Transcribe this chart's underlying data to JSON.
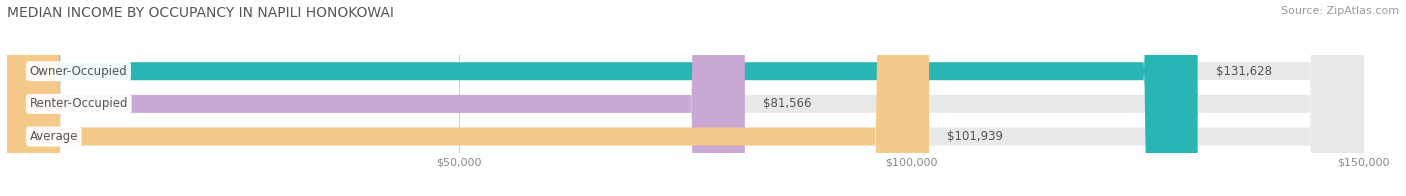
{
  "title": "MEDIAN INCOME BY OCCUPANCY IN NAPILI HONOKOWAI",
  "source": "Source: ZipAtlas.com",
  "categories": [
    "Owner-Occupied",
    "Renter-Occupied",
    "Average"
  ],
  "values": [
    131628,
    81566,
    101939
  ],
  "bar_colors": [
    "#2ab5b5",
    "#c9a8d4",
    "#f5c989"
  ],
  "bar_bg_color": "#e8e8e8",
  "label_texts": [
    "$131,628",
    "$81,566",
    "$101,939"
  ],
  "xlim": [
    0,
    150000
  ],
  "xticks": [
    50000,
    100000,
    150000
  ],
  "xtick_labels": [
    "$50,000",
    "$100,000",
    "$150,000"
  ],
  "background_color": "#ffffff",
  "bar_height": 0.55,
  "title_fontsize": 10,
  "source_fontsize": 8,
  "label_fontsize": 8.5,
  "category_fontsize": 8.5,
  "tick_fontsize": 8,
  "bar_label_color": "#555555",
  "category_text_color": "#555555",
  "title_color": "#555555"
}
